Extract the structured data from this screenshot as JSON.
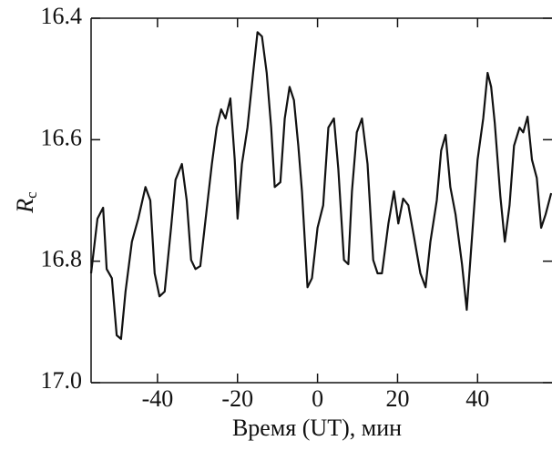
{
  "chart_data": {
    "type": "line",
    "x_label": "Время (UT), мин",
    "y_label": "R",
    "y_label_subscript": "c",
    "inverted_y": true,
    "xlim": [
      -56.6,
      58.6
    ],
    "ylim": [
      17.0,
      16.4
    ],
    "xticks": [
      -40,
      -20,
      0,
      20,
      40
    ],
    "yticks": [
      16.4,
      16.6,
      16.8,
      {
        "value": 17.0,
        "label": "17.0"
      }
    ],
    "series": [
      {
        "color": "#111111",
        "x": [
          -56.6,
          -55.0,
          -53.6,
          -52.7,
          -51.4,
          -50.2,
          -49.1,
          -48.0,
          -46.4,
          -44.8,
          -43.0,
          -41.8,
          -40.7,
          -39.5,
          -38.2,
          -36.6,
          -35.5,
          -33.9,
          -32.7,
          -31.6,
          -30.5,
          -29.3,
          -27.7,
          -26.4,
          -25.2,
          -24.1,
          -23.0,
          -21.8,
          -20.7,
          -20.0,
          -18.9,
          -17.5,
          -16.1,
          -15.0,
          -13.9,
          -12.7,
          -11.6,
          -10.7,
          -9.3,
          -8.2,
          -7.0,
          -5.9,
          -4.8,
          -3.9,
          -2.5,
          -1.4,
          0.0,
          1.4,
          2.7,
          4.1,
          5.2,
          6.6,
          7.7,
          8.6,
          9.8,
          11.1,
          12.5,
          13.9,
          15.0,
          16.1,
          17.7,
          19.1,
          20.2,
          21.4,
          22.7,
          24.1,
          25.7,
          27.0,
          28.2,
          29.8,
          30.9,
          32.0,
          33.2,
          34.5,
          36.1,
          37.3,
          38.6,
          40.0,
          41.4,
          42.5,
          43.4,
          44.3,
          45.7,
          46.8,
          48.0,
          49.1,
          50.5,
          51.4,
          52.5,
          53.6,
          54.8,
          55.9,
          57.0,
          58.4
        ],
        "values": [
          16.82,
          16.73,
          16.712,
          16.813,
          16.828,
          16.922,
          16.928,
          16.85,
          16.768,
          16.73,
          16.678,
          16.7,
          16.82,
          16.858,
          16.85,
          16.745,
          16.666,
          16.64,
          16.7,
          16.798,
          16.813,
          16.808,
          16.715,
          16.64,
          16.58,
          16.55,
          16.565,
          16.532,
          16.633,
          16.73,
          16.64,
          16.58,
          16.49,
          16.423,
          16.43,
          16.49,
          16.58,
          16.678,
          16.67,
          16.565,
          16.513,
          16.535,
          16.61,
          16.685,
          16.843,
          16.828,
          16.745,
          16.708,
          16.58,
          16.565,
          16.648,
          16.798,
          16.805,
          16.685,
          16.588,
          16.565,
          16.64,
          16.798,
          16.82,
          16.82,
          16.738,
          16.685,
          16.738,
          16.697,
          16.708,
          16.76,
          16.82,
          16.843,
          16.768,
          16.7,
          16.618,
          16.592,
          16.678,
          16.723,
          16.805,
          16.88,
          16.76,
          16.633,
          16.565,
          16.49,
          16.513,
          16.573,
          16.693,
          16.768,
          16.708,
          16.61,
          16.58,
          16.588,
          16.562,
          16.633,
          16.663,
          16.745,
          16.723,
          16.688
        ]
      }
    ]
  }
}
